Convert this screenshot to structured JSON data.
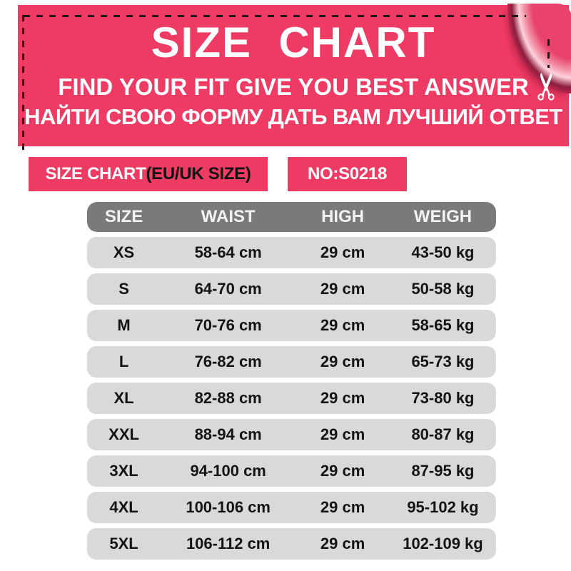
{
  "banner": {
    "title": "SIZE  CHART",
    "subtitle_en": "FIND YOUR FIT GIVE YOU BEST ANSWER",
    "subtitle_ru": "НАЙТИ СВОЮ ФОРМУ ДАТЬ ВАМ ЛУЧШИЙ ОТВЕТ"
  },
  "subheader": {
    "left_main": "SIZE  CHART",
    "left_paren": "(EU/UK SIZE)",
    "product_no": "NO:S0218"
  },
  "icons": {
    "scissors": "✂"
  },
  "colors": {
    "brand_pink": "#ee3b64",
    "fold_dark_pink": "#c82b53",
    "table_header_gray": "#7a7a7a",
    "table_row_gray": "#d9d9d9",
    "dash_black": "#1a1a1a"
  },
  "chart_data": {
    "type": "table",
    "title": "SIZE CHART (EU/UK SIZE)",
    "product_no": "NO:S0218",
    "columns": [
      "SIZE",
      "WAIST",
      "HIGH",
      "WEIGH"
    ],
    "rows": [
      [
        "XS",
        "58-64 cm",
        "29 cm",
        "43-50 kg"
      ],
      [
        "S",
        "64-70 cm",
        "29 cm",
        "50-58 kg"
      ],
      [
        "M",
        "70-76 cm",
        "29 cm",
        "58-65 kg"
      ],
      [
        "L",
        "76-82 cm",
        "29 cm",
        "65-73 kg"
      ],
      [
        "XL",
        "82-88 cm",
        "29 cm",
        "73-80 kg"
      ],
      [
        "XXL",
        "88-94 cm",
        "29 cm",
        "80-87 kg"
      ],
      [
        "3XL",
        "94-100 cm",
        "29 cm",
        "87-95 kg"
      ],
      [
        "4XL",
        "100-106 cm",
        "29 cm",
        "95-102 kg"
      ],
      [
        "5XL",
        "106-112 cm",
        "29 cm",
        "102-109 kg"
      ]
    ]
  }
}
